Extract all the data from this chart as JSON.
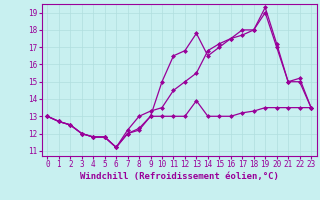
{
  "xlabel": "Windchill (Refroidissement éolien,°C)",
  "background_color": "#c8f0f0",
  "grid_color": "#b0dede",
  "line_color": "#990099",
  "xlim": [
    -0.5,
    23.5
  ],
  "ylim": [
    10.7,
    19.5
  ],
  "xticks": [
    0,
    1,
    2,
    3,
    4,
    5,
    6,
    7,
    8,
    9,
    10,
    11,
    12,
    13,
    14,
    15,
    16,
    17,
    18,
    19,
    20,
    21,
    22,
    23
  ],
  "yticks": [
    11,
    12,
    13,
    14,
    15,
    16,
    17,
    18,
    19
  ],
  "line1_x": [
    0,
    1,
    2,
    3,
    4,
    5,
    6,
    7,
    8,
    9,
    10,
    11,
    12,
    13,
    14,
    15,
    16,
    17,
    18,
    19,
    20,
    21,
    22,
    23
  ],
  "line1_y": [
    13.0,
    12.7,
    12.5,
    12.0,
    11.8,
    11.8,
    11.2,
    12.0,
    12.2,
    13.0,
    13.0,
    13.0,
    13.0,
    13.9,
    13.0,
    13.0,
    13.0,
    13.2,
    13.3,
    13.5,
    13.5,
    13.5,
    13.5,
    13.5
  ],
  "line2_x": [
    0,
    1,
    2,
    3,
    4,
    5,
    6,
    7,
    8,
    9,
    10,
    11,
    12,
    13,
    14,
    15,
    16,
    17,
    18,
    19,
    20,
    21,
    22,
    23
  ],
  "line2_y": [
    13.0,
    12.7,
    12.5,
    12.0,
    11.8,
    11.8,
    11.2,
    12.0,
    12.3,
    13.0,
    15.0,
    16.5,
    16.8,
    17.8,
    16.5,
    17.0,
    17.5,
    17.7,
    18.0,
    19.3,
    17.2,
    15.0,
    15.0,
    13.5
  ],
  "line3_x": [
    0,
    1,
    2,
    3,
    4,
    5,
    6,
    7,
    8,
    9,
    10,
    11,
    12,
    13,
    14,
    15,
    16,
    17,
    18,
    19,
    20,
    21,
    22,
    23
  ],
  "line3_y": [
    13.0,
    12.7,
    12.5,
    12.0,
    11.8,
    11.8,
    11.2,
    12.2,
    13.0,
    13.3,
    13.5,
    14.5,
    15.0,
    15.5,
    16.8,
    17.2,
    17.5,
    18.0,
    18.0,
    19.0,
    17.0,
    15.0,
    15.2,
    13.5
  ],
  "marker": "D",
  "markersize": 2,
  "linewidth": 0.9,
  "tick_fontsize": 5.5,
  "label_fontsize": 6.5
}
